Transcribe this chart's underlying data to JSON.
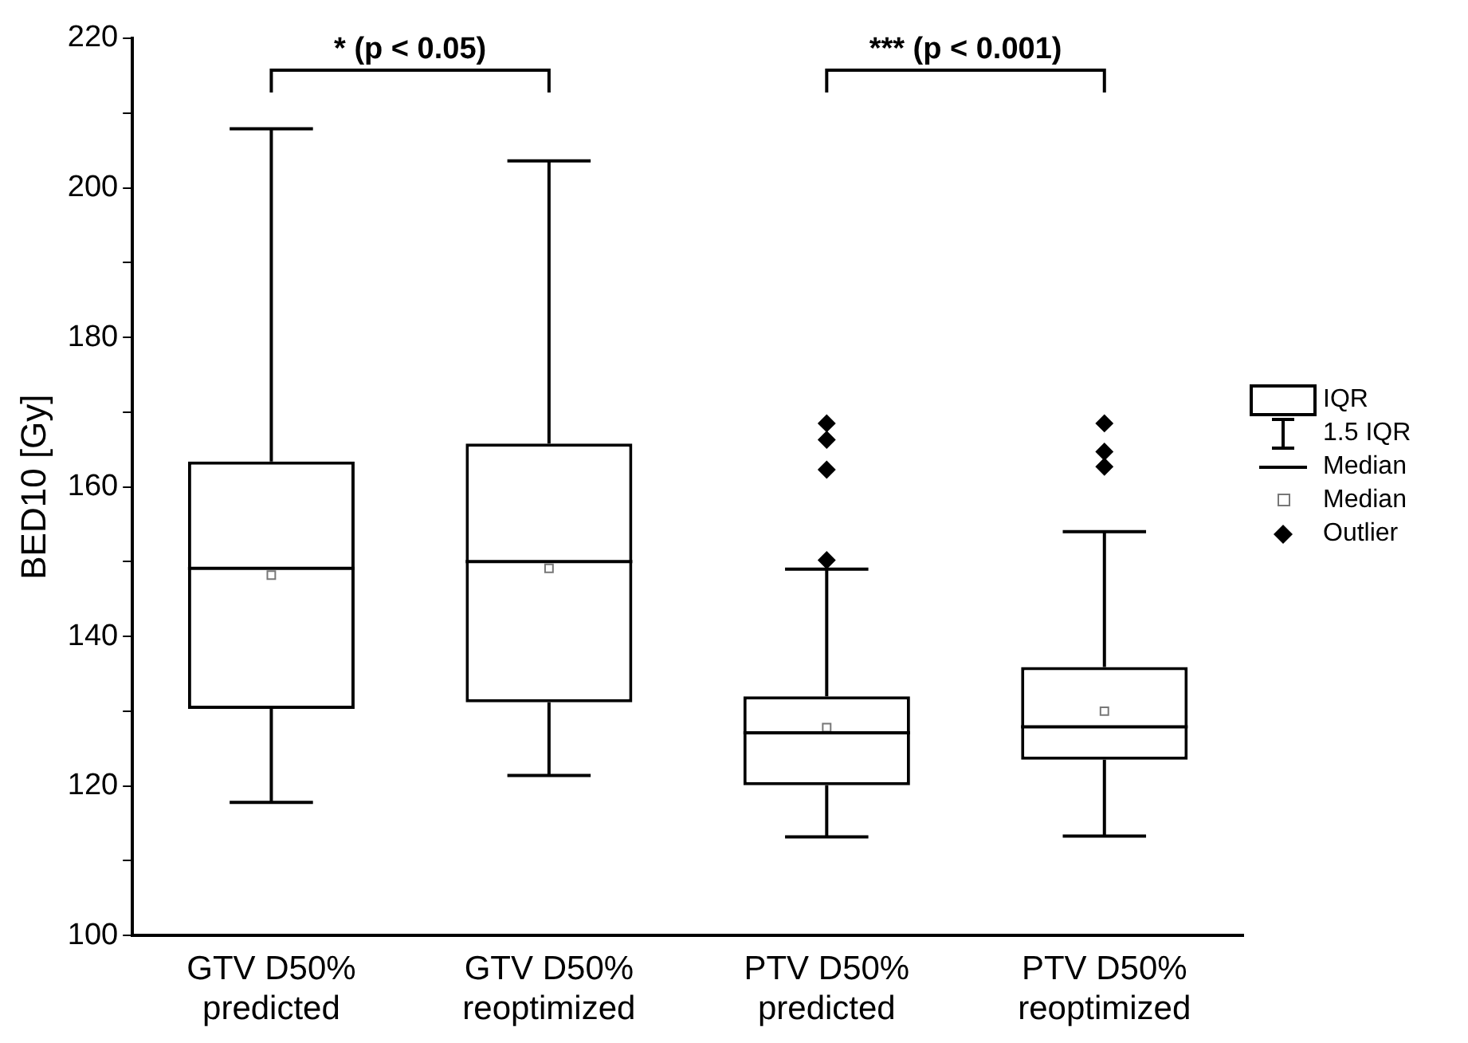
{
  "chart_data": {
    "type": "box",
    "ylabel": "BED10 [Gy]",
    "categories": [
      "GTV D50%\npredicted",
      "GTV D50%\nreoptimized",
      "PTV D50%\npredicted",
      "PTV D50%\nreoptimized"
    ],
    "boxes": [
      {
        "low": 117.8,
        "q1": 130.3,
        "median": 149.1,
        "q3": 163.4,
        "high": 207.9,
        "mean": 148.2
      },
      {
        "low": 121.4,
        "q1": 131.2,
        "median": 150.0,
        "q3": 165.8,
        "high": 203.6,
        "mean": 149.1
      },
      {
        "low": 113.2,
        "q1": 120.1,
        "median": 127.1,
        "q3": 132.0,
        "high": 149.0,
        "mean": 127.8,
        "outliers": [
          150.2,
          162.3,
          166.3,
          168.5
        ]
      },
      {
        "low": 113.3,
        "q1": 123.5,
        "median": 127.9,
        "q3": 135.9,
        "high": 154.0,
        "mean": 130.0,
        "outliers": [
          162.7,
          164.7,
          168.5
        ]
      }
    ],
    "color": "#000000",
    "ylim": [
      100,
      220
    ],
    "yticks": [
      100,
      {
        "value": 110,
        "label": null
      },
      120,
      {
        "value": 130,
        "label": null
      },
      140,
      {
        "value": 150,
        "label": null
      },
      160,
      {
        "value": 170,
        "label": null
      },
      180,
      {
        "value": 190,
        "label": null
      },
      200,
      {
        "value": 210,
        "label": null
      },
      220
    ],
    "grid": false,
    "annotations": [
      "* (p < 0.05)",
      "*** (p < 0.001)",
      "IQR",
      "1.5 IQR",
      "Median",
      "Median",
      "Outlier"
    ]
  }
}
